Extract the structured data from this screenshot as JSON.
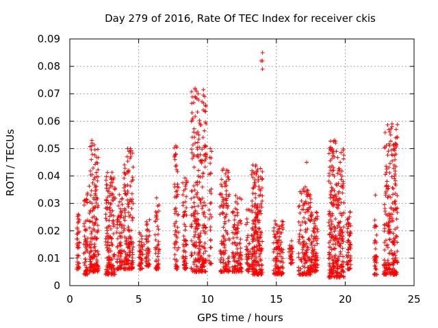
{
  "chart_data": {
    "type": "scatter",
    "title": "Day 279 of 2016, Rate Of TEC Index for receiver ckis",
    "xlabel": "GPS time / hours",
    "ylabel": "ROTI / TECUs",
    "xlim": [
      0,
      25
    ],
    "ylim": [
      0,
      0.09
    ],
    "xticks": [
      0,
      5,
      10,
      15,
      20,
      25
    ],
    "xtick_labels": [
      "0",
      "5",
      "10",
      "15",
      "20",
      "25"
    ],
    "yticks": [
      0,
      0.01,
      0.02,
      0.03,
      0.04,
      0.05,
      0.06,
      0.07,
      0.08,
      0.09
    ],
    "ytick_labels": [
      "0",
      "0.01",
      "0.02",
      "0.03",
      "0.04",
      "0.05",
      "0.06",
      "0.07",
      "0.08",
      "0.09"
    ],
    "grid": true,
    "marker": "+",
    "color": "#ff0000",
    "clusters": [
      {
        "t_start": 0.5,
        "t_end": 0.7,
        "y_min": 0.006,
        "y_max": 0.027,
        "n": 40
      },
      {
        "t_start": 1.0,
        "t_end": 1.3,
        "y_min": 0.004,
        "y_max": 0.035,
        "n": 60
      },
      {
        "t_start": 1.4,
        "t_end": 2.1,
        "y_min": 0.005,
        "y_max": 0.053,
        "n": 160
      },
      {
        "t_start": 2.6,
        "t_end": 3.3,
        "y_min": 0.004,
        "y_max": 0.042,
        "n": 150
      },
      {
        "t_start": 3.4,
        "t_end": 3.8,
        "y_min": 0.006,
        "y_max": 0.035,
        "n": 80
      },
      {
        "t_start": 3.9,
        "t_end": 4.6,
        "y_min": 0.006,
        "y_max": 0.05,
        "n": 150
      },
      {
        "t_start": 5.0,
        "t_end": 5.3,
        "y_min": 0.006,
        "y_max": 0.02,
        "n": 40
      },
      {
        "t_start": 5.5,
        "t_end": 5.8,
        "y_min": 0.007,
        "y_max": 0.026,
        "n": 40
      },
      {
        "t_start": 6.2,
        "t_end": 6.5,
        "y_min": 0.006,
        "y_max": 0.032,
        "n": 50
      },
      {
        "t_start": 7.6,
        "t_end": 7.9,
        "y_min": 0.006,
        "y_max": 0.051,
        "n": 60
      },
      {
        "t_start": 8.2,
        "t_end": 8.5,
        "y_min": 0.006,
        "y_max": 0.04,
        "n": 60
      },
      {
        "t_start": 8.8,
        "t_end": 9.9,
        "y_min": 0.005,
        "y_max": 0.072,
        "n": 260
      },
      {
        "t_start": 10.1,
        "t_end": 10.3,
        "y_min": 0.008,
        "y_max": 0.05,
        "n": 30
      },
      {
        "t_start": 10.9,
        "t_end": 11.6,
        "y_min": 0.005,
        "y_max": 0.043,
        "n": 120
      },
      {
        "t_start": 11.8,
        "t_end": 12.5,
        "y_min": 0.005,
        "y_max": 0.035,
        "n": 110
      },
      {
        "t_start": 12.8,
        "t_end": 13.1,
        "y_min": 0.005,
        "y_max": 0.029,
        "n": 40
      },
      {
        "t_start": 13.2,
        "t_end": 14.0,
        "y_min": 0.004,
        "y_max": 0.044,
        "n": 200
      },
      {
        "t_start": 14.8,
        "t_end": 15.5,
        "y_min": 0.004,
        "y_max": 0.024,
        "n": 120
      },
      {
        "t_start": 15.9,
        "t_end": 16.2,
        "y_min": 0.008,
        "y_max": 0.017,
        "n": 30
      },
      {
        "t_start": 16.6,
        "t_end": 17.5,
        "y_min": 0.004,
        "y_max": 0.036,
        "n": 140
      },
      {
        "t_start": 17.5,
        "t_end": 18.0,
        "y_min": 0.005,
        "y_max": 0.027,
        "n": 90
      },
      {
        "t_start": 18.8,
        "t_end": 19.9,
        "y_min": 0.003,
        "y_max": 0.053,
        "n": 280
      },
      {
        "t_start": 20.1,
        "t_end": 20.4,
        "y_min": 0.006,
        "y_max": 0.027,
        "n": 60
      },
      {
        "t_start": 22.1,
        "t_end": 22.3,
        "y_min": 0.004,
        "y_max": 0.024,
        "n": 40
      },
      {
        "t_start": 22.8,
        "t_end": 23.8,
        "y_min": 0.004,
        "y_max": 0.059,
        "n": 230
      }
    ],
    "outliers": [
      {
        "x": 14.0,
        "y": 0.085
      },
      {
        "x": 14.0,
        "y": 0.082
      },
      {
        "x": 13.9,
        "y": 0.082
      },
      {
        "x": 14.0,
        "y": 0.079
      },
      {
        "x": 9.1,
        "y": 0.072
      },
      {
        "x": 9.2,
        "y": 0.071
      },
      {
        "x": 9.1,
        "y": 0.069
      },
      {
        "x": 9.0,
        "y": 0.056
      },
      {
        "x": 9.1,
        "y": 0.052
      },
      {
        "x": 23.4,
        "y": 0.059
      },
      {
        "x": 23.4,
        "y": 0.058
      },
      {
        "x": 23.3,
        "y": 0.055
      },
      {
        "x": 23.7,
        "y": 0.051
      },
      {
        "x": 23.6,
        "y": 0.05
      },
      {
        "x": 19.2,
        "y": 0.053
      },
      {
        "x": 19.3,
        "y": 0.052
      },
      {
        "x": 1.6,
        "y": 0.053
      },
      {
        "x": 1.6,
        "y": 0.052
      },
      {
        "x": 1.6,
        "y": 0.051
      },
      {
        "x": 4.4,
        "y": 0.05
      },
      {
        "x": 4.2,
        "y": 0.05
      },
      {
        "x": 4.3,
        "y": 0.049
      },
      {
        "x": 7.7,
        "y": 0.051
      },
      {
        "x": 7.7,
        "y": 0.048
      },
      {
        "x": 7.6,
        "y": 0.047
      },
      {
        "x": 10.2,
        "y": 0.05
      },
      {
        "x": 10.3,
        "y": 0.049
      },
      {
        "x": 17.2,
        "y": 0.045
      },
      {
        "x": 17.1,
        "y": 0.036
      },
      {
        "x": 22.2,
        "y": 0.033
      },
      {
        "x": 13.3,
        "y": 0.044
      },
      {
        "x": 13.4,
        "y": 0.041
      },
      {
        "x": 6.3,
        "y": 0.032
      },
      {
        "x": 5.4,
        "y": 0.015
      }
    ]
  }
}
